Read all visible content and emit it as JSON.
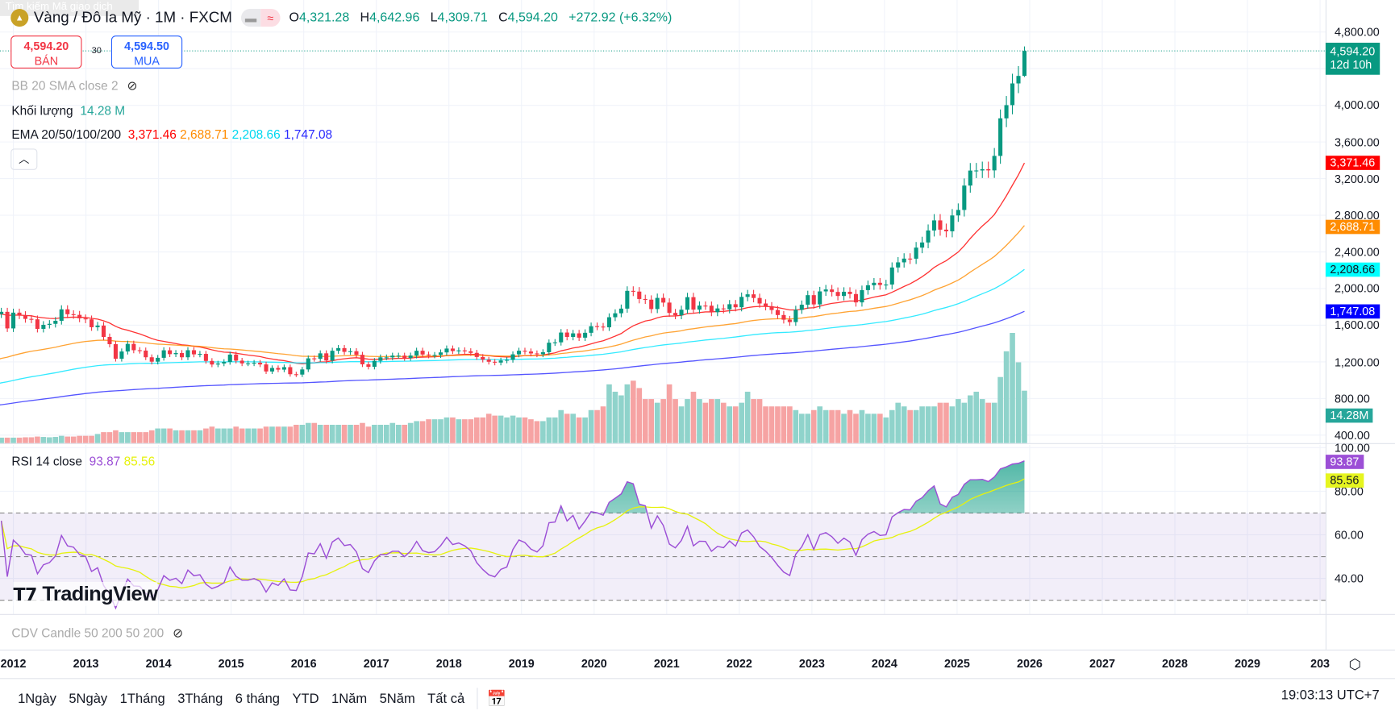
{
  "search_tooltip": "Tìm kiếm Mã giao dịch",
  "header": {
    "symbol_title": "Vàng / Đô la Mỹ · 1M · FXCM",
    "open_label": "O",
    "open": "4,321.28",
    "high_label": "H",
    "high": "4,642.96",
    "low_label": "L",
    "low": "4,309.71",
    "close_label": "C",
    "close": "4,594.20",
    "change": "+272.92 (+6.32%)"
  },
  "trade": {
    "sell_price": "4,594.20",
    "sell_label": "BÁN",
    "spread": "30",
    "buy_price": "4,594.50",
    "buy_label": "MUA"
  },
  "legends": {
    "bb": "BB 20 SMA close 2",
    "volume_label": "Khối lượng",
    "volume_value": "14.28 M",
    "ema_label": "EMA 20/50/100/200",
    "ema20": "3,371.46",
    "ema50": "2,688.71",
    "ema100": "2,208.66",
    "ema200": "1,747.08",
    "rsi_label": "RSI 14 close",
    "rsi_value": "93.87",
    "rsi_ma_value": "85.56",
    "cdv": "CDV Candle 50 200 50 200"
  },
  "price_axis": [
    "4,800.00",
    "4,000.00",
    "3,600.00",
    "3,200.00",
    "2,800.00",
    "2,400.00",
    "2,000.00",
    "1,600.00",
    "1,200.00",
    "800.00",
    "400.00"
  ],
  "rsi_axis": [
    "100.00",
    "80.00",
    "60.00",
    "40.00"
  ],
  "tags": {
    "last_price": "4,594.20",
    "countdown": "12d 10h",
    "ema20": "3,371.46",
    "ema50": "2,688.71",
    "ema100": "2,208.66",
    "ema200": "1,747.08",
    "volume": "14.28M",
    "rsi": "93.87",
    "rsi_ma": "85.56"
  },
  "time_axis": [
    "2012",
    "2013",
    "2014",
    "2015",
    "2016",
    "2017",
    "2018",
    "2019",
    "2020",
    "2021",
    "2022",
    "2023",
    "2024",
    "2025",
    "2026",
    "2027",
    "2028",
    "2029",
    "203"
  ],
  "ranges": [
    "1Ngày",
    "5Ngày",
    "1Tháng",
    "3Tháng",
    "6 tháng",
    "YTD",
    "1Năm",
    "5Năm",
    "Tất cả"
  ],
  "clock": "19:03:13 UTC+7",
  "logo": "TradingView",
  "colors": {
    "up": "#089981",
    "down": "#f23645",
    "ema20": "#ff0000",
    "ema50": "#ff8c00",
    "ema100": "#00e5ff",
    "ema200": "#2a2aff",
    "rsi": "#9c4fd6",
    "rsi_ma": "#e6f20d",
    "vol_up": "#8fd3cb",
    "vol_down": "#f6a3a3"
  },
  "chart_data": {
    "type": "candlestick",
    "interval": "1M",
    "start_month": "2011-10",
    "y_scale": "linear",
    "ylim": [
      400,
      4800
    ],
    "rsi_ylim": [
      30,
      100
    ],
    "rsi_bands": [
      30,
      50,
      70
    ],
    "grid": true,
    "closes": [
      1722,
      1746,
      1565,
      1737,
      1710,
      1669,
      1664,
      1560,
      1604,
      1615,
      1648,
      1773,
      1720,
      1713,
      1675,
      1664,
      1578,
      1596,
      1472,
      1393,
      1234,
      1313,
      1396,
      1327,
      1323,
      1250,
      1202,
      1244,
      1326,
      1284,
      1296,
      1250,
      1327,
      1282,
      1287,
      1210,
      1171,
      1182,
      1199,
      1279,
      1213,
      1183,
      1183,
      1190,
      1172,
      1095,
      1133,
      1115,
      1142,
      1065,
      1061,
      1117,
      1238,
      1233,
      1293,
      1214,
      1321,
      1350,
      1309,
      1316,
      1277,
      1173,
      1146,
      1211,
      1249,
      1249,
      1268,
      1268,
      1242,
      1269,
      1321,
      1280,
      1271,
      1275,
      1303,
      1345,
      1318,
      1325,
      1315,
      1298,
      1253,
      1224,
      1201,
      1192,
      1215,
      1222,
      1282,
      1321,
      1313,
      1292,
      1283,
      1305,
      1409,
      1413,
      1520,
      1472,
      1511,
      1464,
      1517,
      1589,
      1585,
      1577,
      1687,
      1730,
      1781,
      1975,
      1967,
      1886,
      1879,
      1776,
      1898,
      1847,
      1734,
      1708,
      1769,
      1906,
      1770,
      1814,
      1813,
      1742,
      1783,
      1774,
      1829,
      1796,
      1909,
      1937,
      1897,
      1837,
      1807,
      1766,
      1711,
      1660,
      1634,
      1768,
      1824,
      1928,
      1827,
      1969,
      1990,
      1963,
      1919,
      1965,
      1940,
      1849,
      1983,
      2036,
      2063,
      2039,
      2044,
      2230,
      2286,
      2327,
      2326,
      2447,
      2503,
      2634,
      2744,
      2643,
      2625,
      2798,
      2858,
      3124,
      3288,
      3289,
      3303,
      3290,
      3448,
      3858,
      4002,
      4239,
      4321,
      4594.2
    ],
    "last_candle": {
      "open": 4321.28,
      "high": 4642.96,
      "low": 4309.71,
      "close": 4594.2
    },
    "volume_millions": [
      1.5,
      1.5,
      1.5,
      1.5,
      1.5,
      1.6,
      1.6,
      1.8,
      1.7,
      1.6,
      1.7,
      2,
      1.8,
      1.8,
      2,
      2,
      2,
      2.5,
      3,
      3,
      3.5,
      3,
      3,
      3,
      3,
      3,
      3.5,
      4,
      4,
      4,
      3.5,
      3.5,
      3.5,
      3.5,
      3.5,
      4,
      4.5,
      4,
      4,
      4,
      4.5,
      4,
      4,
      4,
      4,
      4.5,
      4.5,
      4.5,
      4.5,
      4.5,
      5,
      5,
      5.5,
      5.5,
      5,
      5,
      5,
      5,
      5,
      5,
      5,
      5.5,
      4.5,
      5,
      5,
      5,
      5.5,
      5,
      5,
      5.5,
      6,
      6,
      6.5,
      6.5,
      6.5,
      7,
      7,
      6.5,
      6.5,
      6.5,
      7,
      7,
      8,
      7.5,
      7.5,
      7,
      7.5,
      7,
      7,
      6.5,
      6,
      6,
      7,
      7,
      9,
      8,
      8,
      7,
      7,
      9,
      9,
      10,
      16,
      14,
      13,
      16,
      17,
      15,
      12,
      12,
      11,
      12,
      16,
      12,
      10,
      12,
      14,
      12,
      11,
      12,
      12,
      11,
      10,
      10,
      11,
      14,
      12,
      12,
      10,
      10,
      10,
      10,
      10,
      9,
      8,
      8,
      9,
      10,
      9,
      9,
      9,
      8,
      9,
      8,
      9,
      8,
      8,
      8,
      7,
      9,
      11,
      10,
      9,
      9,
      10,
      10,
      10,
      11,
      11,
      10,
      12,
      11,
      13,
      14,
      12,
      11,
      11,
      18,
      25,
      30,
      22,
      14.28
    ]
  }
}
